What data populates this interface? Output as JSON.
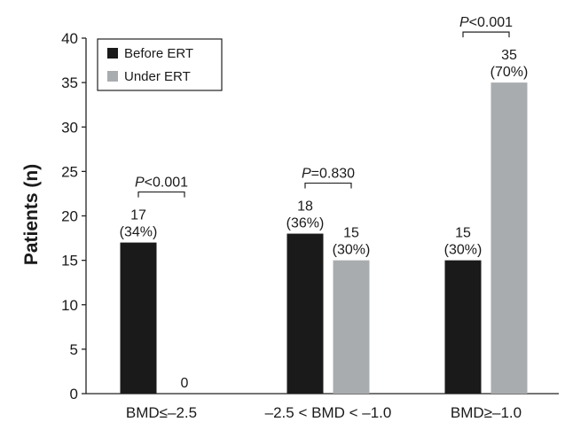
{
  "chart_data": {
    "type": "bar",
    "ylabel": "Patients (n)",
    "ylim": [
      0,
      40
    ],
    "yticks": [
      0,
      5,
      10,
      15,
      20,
      25,
      30,
      35,
      40
    ],
    "categories": [
      "BMD≤–2.5",
      "–2.5 < BMD < –1.0",
      "BMD≥–1.0"
    ],
    "series": [
      {
        "name": "Before ERT",
        "color": "#1a1a1a",
        "values": [
          17,
          18,
          15
        ],
        "labels": [
          [
            "17",
            "(34%)"
          ],
          [
            "18",
            "(36%)"
          ],
          [
            "15",
            "(30%)"
          ]
        ]
      },
      {
        "name": "Under ERT",
        "color": "#a9acaf",
        "values": [
          0,
          15,
          35
        ],
        "labels": [
          [
            "0"
          ],
          [
            "15",
            "(30%)"
          ],
          [
            "35",
            "(70%)"
          ]
        ]
      }
    ],
    "comparisons": [
      {
        "p_label": "P",
        "p_value": "<0.001"
      },
      {
        "p_label": "P",
        "p_value": "=0.830"
      },
      {
        "p_label": "P",
        "p_value": "<0.001"
      }
    ],
    "legend_position": "top-left",
    "grid": false
  }
}
